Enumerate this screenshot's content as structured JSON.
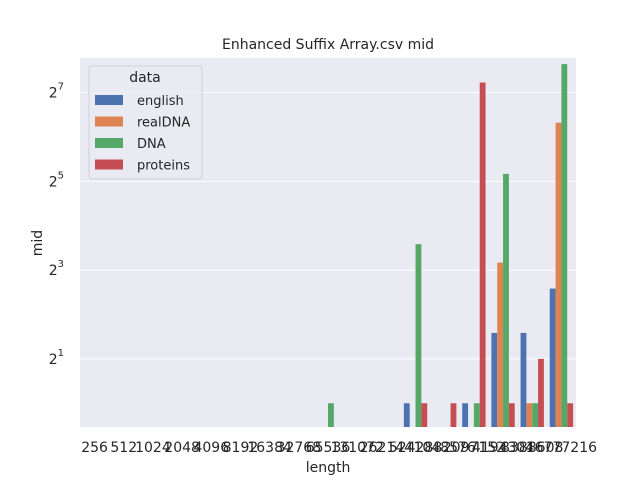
{
  "chart_data": {
    "type": "bar",
    "title": "Enhanced Suffix Array.csv mid",
    "xlabel": "length",
    "ylabel": "mid",
    "yscale": "log2",
    "ylim": [
      0.69,
      220
    ],
    "y_ticks": [
      {
        "value": 2,
        "base": "2",
        "exp": "1"
      },
      {
        "value": 8,
        "base": "2",
        "exp": "3"
      },
      {
        "value": 32,
        "base": "2",
        "exp": "5"
      },
      {
        "value": 128,
        "base": "2",
        "exp": "7"
      }
    ],
    "grid": true,
    "legend": {
      "title": "data",
      "placement": "top-left"
    },
    "categories": [
      "256",
      "512",
      "1024",
      "2048",
      "4096",
      "8192",
      "16384",
      "32768",
      "65536",
      "131072",
      "262144",
      "524288",
      "1048576",
      "2097152",
      "4194304",
      "8388608",
      "16777216"
    ],
    "series": [
      {
        "name": "english",
        "color": "#4c72b0",
        "values": [
          null,
          null,
          null,
          null,
          null,
          null,
          null,
          null,
          null,
          null,
          null,
          1,
          null,
          1,
          3,
          3,
          6
        ]
      },
      {
        "name": "realDNA",
        "color": "#dd8452",
        "values": [
          null,
          null,
          null,
          null,
          null,
          null,
          null,
          null,
          null,
          null,
          null,
          null,
          null,
          null,
          9,
          1,
          80
        ]
      },
      {
        "name": "DNA",
        "color": "#55a868",
        "values": [
          null,
          null,
          null,
          null,
          null,
          null,
          null,
          null,
          1,
          null,
          null,
          12,
          null,
          1,
          36,
          1,
          200
        ]
      },
      {
        "name": "proteins",
        "color": "#c44e52",
        "values": [
          null,
          null,
          null,
          null,
          null,
          null,
          null,
          null,
          null,
          null,
          null,
          1,
          1,
          150,
          1,
          2,
          1
        ]
      }
    ]
  }
}
